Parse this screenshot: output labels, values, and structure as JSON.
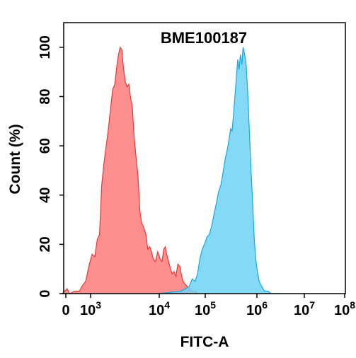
{
  "chart_data": {
    "type": "area",
    "title": "BME100187",
    "xlabel": "FITC-A",
    "ylabel": "Count (%)",
    "x_scale": "biexponential",
    "ylim": [
      0,
      110
    ],
    "x_ticks": [
      {
        "value": 0,
        "base": "0",
        "exp": ""
      },
      {
        "value": 1000,
        "base": "10",
        "exp": "3"
      },
      {
        "value": 10000,
        "base": "10",
        "exp": "4"
      },
      {
        "value": 100000,
        "base": "10",
        "exp": "5"
      },
      {
        "value": 1000000,
        "base": "10",
        "exp": "6"
      },
      {
        "value": 10000000,
        "base": "10",
        "exp": "7"
      },
      {
        "value": 100000000,
        "base": "10",
        "exp": "8"
      }
    ],
    "y_ticks": [
      0,
      20,
      40,
      60,
      80,
      100
    ],
    "grid": false,
    "legend": "none",
    "series": [
      {
        "color": "#ff7b7b",
        "stroke": "#e23a3a",
        "points": [
          [
            -150,
            0
          ],
          [
            50,
            2
          ],
          [
            150,
            0
          ],
          [
            350,
            1
          ],
          [
            550,
            1
          ],
          [
            650,
            3
          ],
          [
            800,
            5
          ],
          [
            950,
            12
          ],
          [
            1050,
            16
          ],
          [
            1150,
            15
          ],
          [
            1250,
            22
          ],
          [
            1350,
            24
          ],
          [
            1450,
            44
          ],
          [
            1550,
            52
          ],
          [
            1650,
            58
          ],
          [
            1800,
            66
          ],
          [
            1950,
            75
          ],
          [
            2100,
            83
          ],
          [
            2250,
            85
          ],
          [
            2400,
            92
          ],
          [
            2550,
            97
          ],
          [
            2700,
            100
          ],
          [
            2850,
            99
          ],
          [
            3000,
            92
          ],
          [
            3200,
            86
          ],
          [
            3400,
            84
          ],
          [
            3600,
            85
          ],
          [
            3800,
            80
          ],
          [
            4050,
            76
          ],
          [
            4300,
            64
          ],
          [
            4600,
            55
          ],
          [
            4900,
            48
          ],
          [
            5200,
            34
          ],
          [
            5500,
            29
          ],
          [
            5900,
            27
          ],
          [
            6400,
            24
          ],
          [
            6800,
            18
          ],
          [
            7300,
            19
          ],
          [
            7700,
            17
          ],
          [
            8200,
            14
          ],
          [
            8800,
            13
          ],
          [
            9500,
            17
          ],
          [
            10500,
            14
          ],
          [
            11500,
            13
          ],
          [
            12500,
            18
          ],
          [
            13500,
            19
          ],
          [
            14500,
            16
          ],
          [
            15500,
            14
          ],
          [
            17000,
            11
          ],
          [
            19000,
            8
          ],
          [
            21000,
            9
          ],
          [
            23000,
            7
          ],
          [
            25500,
            12
          ],
          [
            28000,
            11
          ],
          [
            30000,
            8
          ],
          [
            33000,
            5
          ],
          [
            36000,
            4
          ],
          [
            40000,
            3
          ],
          [
            45000,
            2
          ],
          [
            52000,
            1
          ],
          [
            60000,
            1
          ],
          [
            70000,
            0
          ]
        ]
      },
      {
        "color": "#6ed4f5",
        "stroke": "#1aa6df",
        "points": [
          [
            10000,
            0
          ],
          [
            30000,
            1
          ],
          [
            45000,
            3
          ],
          [
            52000,
            6
          ],
          [
            60000,
            5
          ],
          [
            68000,
            8
          ],
          [
            76000,
            14
          ],
          [
            86000,
            18
          ],
          [
            96000,
            20
          ],
          [
            108000,
            23
          ],
          [
            120000,
            24
          ],
          [
            135000,
            28
          ],
          [
            150000,
            33
          ],
          [
            165000,
            37
          ],
          [
            180000,
            41
          ],
          [
            200000,
            44
          ],
          [
            220000,
            49
          ],
          [
            245000,
            55
          ],
          [
            270000,
            59
          ],
          [
            290000,
            63
          ],
          [
            310000,
            67
          ],
          [
            330000,
            66
          ],
          [
            350000,
            72
          ],
          [
            375000,
            80
          ],
          [
            400000,
            88
          ],
          [
            425000,
            95
          ],
          [
            450000,
            91
          ],
          [
            480000,
            97
          ],
          [
            510000,
            93
          ],
          [
            540000,
            100
          ],
          [
            580000,
            97
          ],
          [
            620000,
            93
          ],
          [
            670000,
            80
          ],
          [
            720000,
            64
          ],
          [
            770000,
            50
          ],
          [
            830000,
            36
          ],
          [
            890000,
            22
          ],
          [
            950000,
            14
          ],
          [
            1020000,
            9
          ],
          [
            1120000,
            5
          ],
          [
            1250000,
            3
          ],
          [
            1450000,
            1
          ],
          [
            1700000,
            1
          ],
          [
            2000000,
            0
          ],
          [
            3000000,
            0
          ]
        ]
      }
    ]
  }
}
